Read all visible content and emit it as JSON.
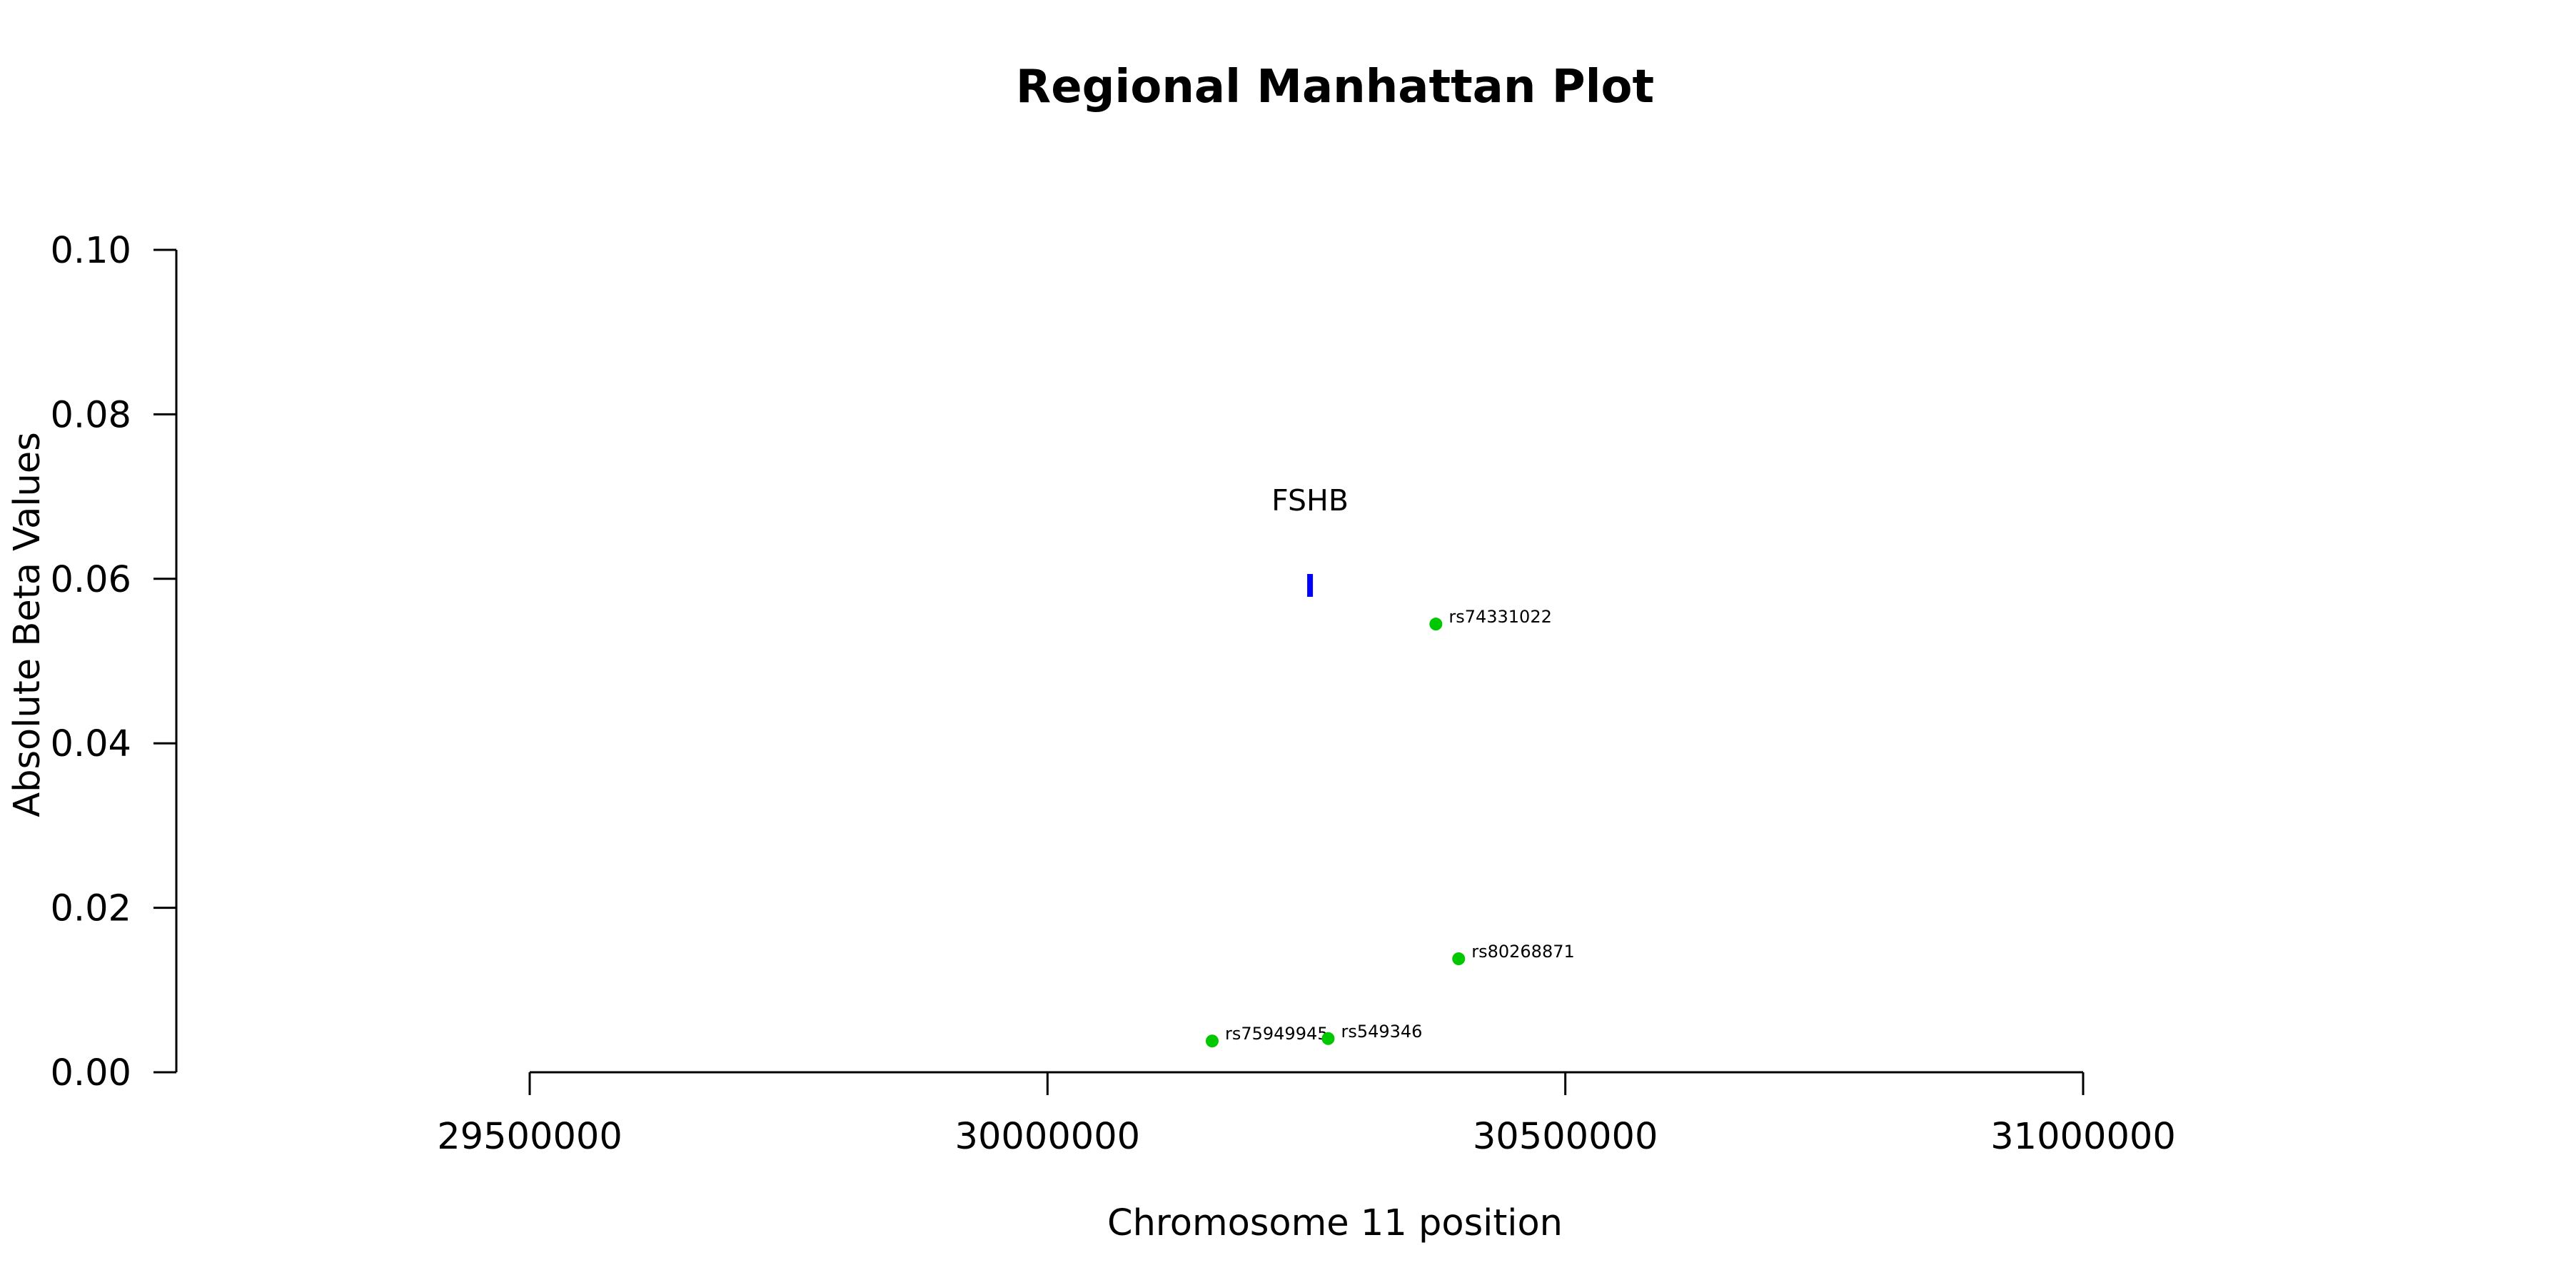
{
  "chart_data": {
    "type": "scatter",
    "title": "Regional Manhattan Plot",
    "xlabel": "Chromosome 11 position",
    "ylabel": "Absolute Beta Values",
    "xlim": [
      29500000,
      31000000
    ],
    "ylim": [
      0,
      0.1
    ],
    "x_ticks": [
      29500000,
      30000000,
      30500000,
      31000000
    ],
    "y_ticks": [
      0.0,
      0.02,
      0.04,
      0.06,
      0.08,
      0.1
    ],
    "x_tick_labels": [
      "29500000",
      "30000000",
      "30500000",
      "31000000"
    ],
    "y_tick_labels": [
      "0.00",
      "0.02",
      "0.04",
      "0.06",
      "0.08",
      "0.10"
    ],
    "point_color": "#00c800",
    "gene_color": "#0000ff",
    "points": [
      {
        "label": "rs74331022",
        "x": 30375000,
        "y": 0.0545
      },
      {
        "label": "rs80268871",
        "x": 30397000,
        "y": 0.0138
      },
      {
        "label": "rs75949945",
        "x": 30159000,
        "y": 0.0038
      },
      {
        "label": "rs549346",
        "x": 30271000,
        "y": 0.0041
      }
    ],
    "genes": [
      {
        "name": "FSHB",
        "x_start": 30252000,
        "x_end": 30255000,
        "y": 0.0592
      }
    ]
  }
}
